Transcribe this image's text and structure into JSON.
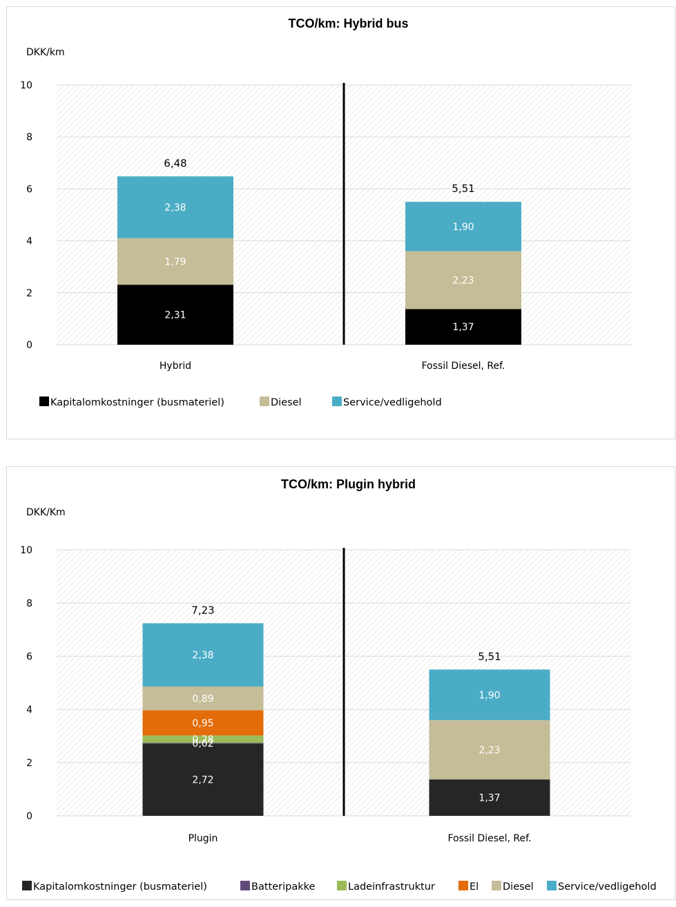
{
  "chart_data": [
    {
      "type": "bar",
      "stacked": true,
      "title": "TCO/km: Hybrid bus",
      "ylabel": "DKK/km",
      "ylim": [
        0,
        10
      ],
      "yticks": [
        "0",
        "2",
        "4",
        "6",
        "8",
        "10"
      ],
      "categories": [
        "Hybrid",
        "Fossil Diesel, Ref."
      ],
      "series": [
        {
          "name": "Kapitalomkostninger (busmateriel)",
          "color": "#000000",
          "label_color": "#ffffff",
          "values": [
            2.31,
            1.37
          ],
          "labels": [
            "2,31",
            "1,37"
          ]
        },
        {
          "name": "Diesel",
          "color": "#c4bd97",
          "label_color": "#ffffff",
          "values": [
            1.79,
            2.23
          ],
          "labels": [
            "1,79",
            "2,23"
          ]
        },
        {
          "name": "Service/vedligehold",
          "color": "#4bacc6",
          "label_color": "#ffffff",
          "values": [
            2.38,
            1.9
          ],
          "labels": [
            "2,38",
            "1,90"
          ]
        }
      ],
      "totals": [
        "6,48",
        "5,51"
      ],
      "grid": true,
      "legend_position": "bottom"
    },
    {
      "type": "bar",
      "stacked": true,
      "title": "TCO/km: Plugin hybrid",
      "ylabel": "DKK/Km",
      "ylim": [
        0,
        10
      ],
      "yticks": [
        "0",
        "2",
        "4",
        "6",
        "8",
        "10"
      ],
      "categories": [
        "Plugin",
        "Fossil Diesel, Ref."
      ],
      "series": [
        {
          "name": "Kapitalomkostninger (busmateriel)",
          "color": "#262626",
          "label_color": "#ffffff",
          "values": [
            2.72,
            1.37
          ],
          "labels": [
            "2,72",
            "1,37"
          ]
        },
        {
          "name": "Batteripakke",
          "color": "#604a7b",
          "label_color": "#ffffff",
          "values": [
            0.02,
            0
          ],
          "labels": [
            "0,02",
            ""
          ]
        },
        {
          "name": "Ladeinfrastruktur",
          "color": "#9bbb59",
          "label_color": "#ffffff",
          "values": [
            0.28,
            0
          ],
          "labels": [
            "0,28",
            ""
          ]
        },
        {
          "name": "El",
          "color": "#e46c0a",
          "label_color": "#ffffff",
          "values": [
            0.95,
            0
          ],
          "labels": [
            "0,95",
            ""
          ]
        },
        {
          "name": "Diesel",
          "color": "#c4bd97",
          "label_color": "#ffffff",
          "values": [
            0.89,
            2.23
          ],
          "labels": [
            "0,89",
            "2,23"
          ]
        },
        {
          "name": "Service/vedligehold",
          "color": "#4bacc6",
          "label_color": "#ffffff",
          "values": [
            2.38,
            1.9
          ],
          "labels": [
            "2,38",
            "1,90"
          ]
        }
      ],
      "totals": [
        "7,23",
        "5,51"
      ],
      "grid": true,
      "legend_position": "bottom"
    }
  ]
}
